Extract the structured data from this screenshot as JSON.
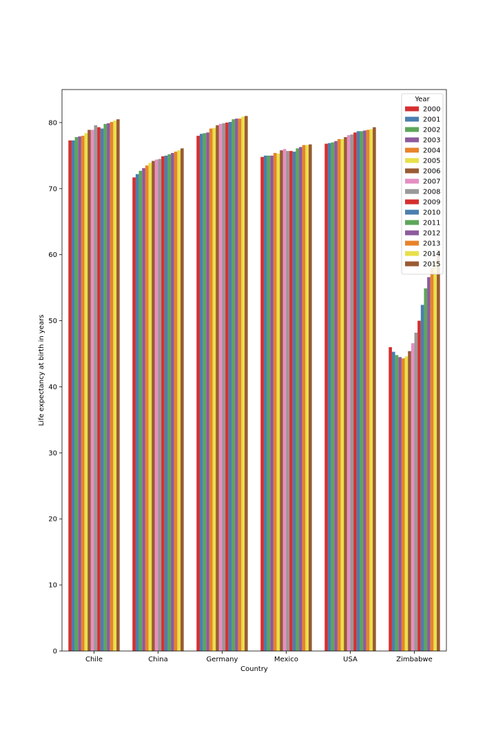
{
  "chart_data": {
    "type": "bar",
    "title": "",
    "xlabel": "Country",
    "ylabel": "Life expectancy at birth in years",
    "ylim": [
      0,
      85
    ],
    "yticks": [
      0,
      10,
      20,
      30,
      40,
      50,
      60,
      70,
      80
    ],
    "grid": false,
    "legend": {
      "title": "Year",
      "placement": "top-right"
    },
    "categories": [
      "Chile",
      "China",
      "Germany",
      "Mexico",
      "USA",
      "Zimbabwe"
    ],
    "series": [
      {
        "name": "2000",
        "color": "#d62f2f",
        "values": [
          77.3,
          71.7,
          78.0,
          74.8,
          76.8,
          46.0
        ]
      },
      {
        "name": "2001",
        "color": "#4a7fb0",
        "values": [
          77.3,
          72.2,
          78.3,
          75.0,
          76.9,
          45.3
        ]
      },
      {
        "name": "2002",
        "color": "#5da65a",
        "values": [
          77.8,
          72.7,
          78.4,
          75.0,
          77.0,
          44.8
        ]
      },
      {
        "name": "2003",
        "color": "#8e5a9c",
        "values": [
          77.9,
          73.1,
          78.5,
          75.0,
          77.2,
          44.5
        ]
      },
      {
        "name": "2004",
        "color": "#e8832a",
        "values": [
          78.0,
          73.5,
          79.1,
          75.4,
          77.5,
          44.3
        ]
      },
      {
        "name": "2005",
        "color": "#e8e04a",
        "values": [
          78.4,
          73.9,
          79.2,
          75.3,
          77.5,
          44.6
        ]
      },
      {
        "name": "2006",
        "color": "#9a5b33",
        "values": [
          78.9,
          74.2,
          79.6,
          75.8,
          77.8,
          45.4
        ]
      },
      {
        "name": "2007",
        "color": "#e58fc4",
        "values": [
          78.9,
          74.4,
          79.8,
          76.0,
          78.1,
          46.6
        ]
      },
      {
        "name": "2008",
        "color": "#999999",
        "values": [
          79.6,
          74.5,
          79.9,
          75.7,
          78.2,
          48.2
        ]
      },
      {
        "name": "2009",
        "color": "#d62f2f",
        "values": [
          79.3,
          74.9,
          80.0,
          75.7,
          78.5,
          50.0
        ]
      },
      {
        "name": "2010",
        "color": "#4a7fb0",
        "values": [
          79.1,
          75.0,
          80.1,
          75.6,
          78.7,
          52.4
        ]
      },
      {
        "name": "2011",
        "color": "#5da65a",
        "values": [
          79.8,
          75.2,
          80.5,
          76.1,
          78.7,
          54.9
        ]
      },
      {
        "name": "2012",
        "color": "#8e5a9c",
        "values": [
          79.9,
          75.4,
          80.6,
          76.3,
          78.8,
          56.6
        ]
      },
      {
        "name": "2013",
        "color": "#e8832a",
        "values": [
          80.1,
          75.6,
          80.6,
          76.6,
          78.9,
          58.0
        ]
      },
      {
        "name": "2014",
        "color": "#e8e04a",
        "values": [
          80.3,
          75.8,
          80.9,
          76.6,
          79.0,
          59.2
        ]
      },
      {
        "name": "2015",
        "color": "#9a5b33",
        "values": [
          80.5,
          76.1,
          81.0,
          76.7,
          79.3,
          60.7
        ]
      }
    ]
  }
}
